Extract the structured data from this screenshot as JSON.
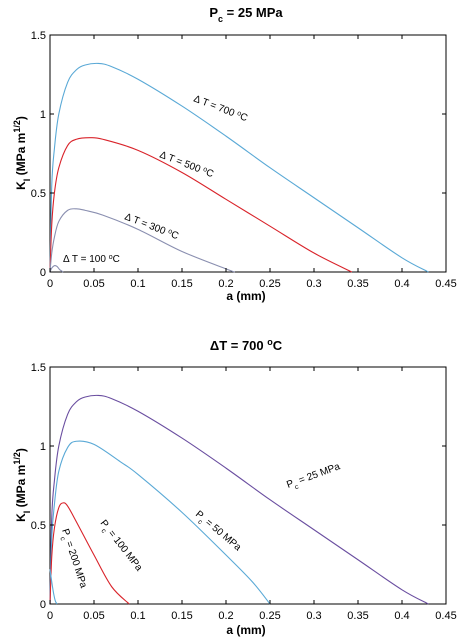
{
  "chart_data": [
    {
      "type": "line",
      "title": "P_c = 25 MPa",
      "title_parts": {
        "base": "P",
        "sub": "c",
        "rest": " = 25 MPa"
      },
      "xlabel": "a (mm)",
      "ylabel": "K_I (MPa m^1/2)",
      "ylabel_parts": {
        "base": "K",
        "sub": "I",
        "mid": " (MPa m",
        "sup": "1/2",
        "end": ")"
      },
      "xlim": [
        0,
        0.45
      ],
      "ylim": [
        0,
        1.5
      ],
      "xticks": [
        "0",
        "0.05",
        "0.1",
        "0.15",
        "0.2",
        "0.25",
        "0.3",
        "0.35",
        "0.4",
        "0.45"
      ],
      "yticks": [
        "0",
        "0.5",
        "1",
        "1.5"
      ],
      "grid": false,
      "series": [
        {
          "name": "ΔT = 700 °C",
          "label_parts": {
            "pre": "Δ T = 700 ",
            "sup": "o",
            "post": "C"
          },
          "color": "#5aa9d6",
          "x": [
            0,
            0.002,
            0.005,
            0.01,
            0.02,
            0.03,
            0.04,
            0.055,
            0.07,
            0.1,
            0.15,
            0.2,
            0.25,
            0.3,
            0.35,
            0.4,
            0.43
          ],
          "y": [
            0,
            0.55,
            0.78,
            1.0,
            1.2,
            1.28,
            1.31,
            1.32,
            1.3,
            1.22,
            1.05,
            0.86,
            0.66,
            0.47,
            0.28,
            0.09,
            0
          ]
        },
        {
          "name": "ΔT = 500 °C",
          "label_parts": {
            "pre": "Δ T = 500 ",
            "sup": "o",
            "post": "C"
          },
          "color": "#d9232a",
          "x": [
            0,
            0.002,
            0.005,
            0.01,
            0.02,
            0.03,
            0.045,
            0.06,
            0.1,
            0.15,
            0.2,
            0.25,
            0.3,
            0.343
          ],
          "y": [
            0,
            0.3,
            0.5,
            0.66,
            0.8,
            0.84,
            0.85,
            0.84,
            0.77,
            0.63,
            0.46,
            0.29,
            0.12,
            0
          ]
        },
        {
          "name": "ΔT = 300 °C",
          "label_parts": {
            "pre": "Δ T = 300 ",
            "sup": "o",
            "post": "C"
          },
          "color": "#8a8fb0",
          "x": [
            0,
            0.002,
            0.005,
            0.01,
            0.02,
            0.03,
            0.04,
            0.06,
            0.1,
            0.15,
            0.2,
            0.21
          ],
          "y": [
            0,
            0.12,
            0.22,
            0.32,
            0.39,
            0.4,
            0.39,
            0.36,
            0.27,
            0.13,
            0.02,
            0
          ]
        },
        {
          "name": "ΔT = 100 °C",
          "label_parts": {
            "pre": "Δ T = 100 ",
            "sup": "o",
            "post": "C"
          },
          "color": "#8a8fb0",
          "x": [
            0,
            0.002,
            0.005,
            0.008,
            0.011,
            0.015
          ],
          "y": [
            0,
            0.025,
            0.04,
            0.035,
            0.015,
            0
          ]
        }
      ]
    },
    {
      "type": "line",
      "title": "ΔT = 700 °C",
      "title_parts": {
        "pre": "ΔT = 700 ",
        "sup": "o",
        "post": "C"
      },
      "xlabel": "a (mm)",
      "ylabel": "K_I (MPa m^1/2)",
      "ylabel_parts": {
        "base": "K",
        "sub": "I",
        "mid": " (MPa m",
        "sup": "1/2",
        "end": ")"
      },
      "xlim": [
        0,
        0.45
      ],
      "ylim": [
        0,
        1.5
      ],
      "xticks": [
        "0",
        "0.05",
        "0.1",
        "0.15",
        "0.2",
        "0.25",
        "0.3",
        "0.35",
        "0.4",
        "0.45"
      ],
      "yticks": [
        "0",
        "0.5",
        "1",
        "1.5"
      ],
      "grid": false,
      "series": [
        {
          "name": "Pc = 25 MPa",
          "label_parts": {
            "base": "P",
            "sub": "c",
            "rest": " = 25 MPa"
          },
          "color": "#6a4ea0",
          "x": [
            0,
            0.002,
            0.005,
            0.01,
            0.02,
            0.03,
            0.04,
            0.055,
            0.07,
            0.1,
            0.15,
            0.2,
            0.25,
            0.3,
            0.35,
            0.4,
            0.43
          ],
          "y": [
            0,
            0.55,
            0.78,
            1.0,
            1.2,
            1.28,
            1.31,
            1.32,
            1.3,
            1.22,
            1.05,
            0.86,
            0.66,
            0.47,
            0.28,
            0.09,
            0
          ]
        },
        {
          "name": "Pc = 50 MPa",
          "label_parts": {
            "base": "P",
            "sub": "c",
            "rest": " = 50 MPa"
          },
          "color": "#5aa9d6",
          "x": [
            0,
            0.002,
            0.005,
            0.01,
            0.02,
            0.03,
            0.05,
            0.08,
            0.1,
            0.15,
            0.2,
            0.23,
            0.25
          ],
          "y": [
            0,
            0.42,
            0.63,
            0.84,
            0.99,
            1.03,
            1.01,
            0.9,
            0.82,
            0.58,
            0.31,
            0.14,
            0
          ]
        },
        {
          "name": "Pc = 100 MPa",
          "label_parts": {
            "base": "P",
            "sub": "c",
            "rest": " = 100 MPa"
          },
          "color": "#d9232a",
          "x": [
            0,
            0.002,
            0.005,
            0.01,
            0.015,
            0.02,
            0.03,
            0.05,
            0.07,
            0.09
          ],
          "y": [
            0,
            0.3,
            0.48,
            0.61,
            0.64,
            0.62,
            0.52,
            0.31,
            0.11,
            0
          ]
        },
        {
          "name": "Pc = 200 MPa",
          "label_parts": {
            "base": "P",
            "sub": "c",
            "rest": " = 200 MPa"
          },
          "color": "#5aa9d6",
          "x": [
            0,
            0.002,
            0.004,
            0.006,
            0.008
          ],
          "y": [
            0.22,
            0.14,
            0.07,
            0.02,
            0
          ]
        }
      ]
    }
  ]
}
